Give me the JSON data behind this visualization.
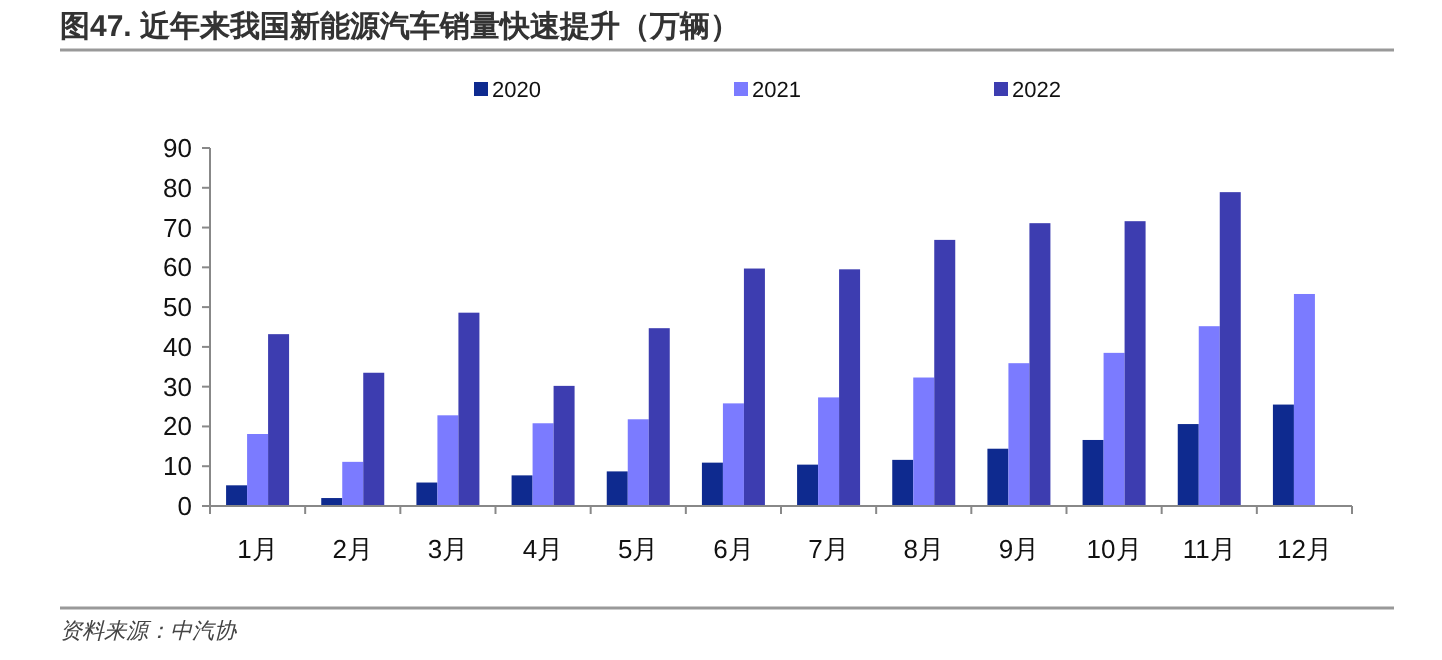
{
  "chart_data": {
    "type": "bar",
    "title": "图47. 近年来我国新能源汽车销量快速提升（万辆）",
    "categories": [
      "1月",
      "2月",
      "3月",
      "4月",
      "5月",
      "6月",
      "7月",
      "8月",
      "9月",
      "10月",
      "11月",
      "12月"
    ],
    "series": [
      {
        "name": "2020",
        "color": "#0e2a8f",
        "values": [
          5.2,
          2.0,
          5.9,
          7.7,
          8.7,
          10.9,
          10.4,
          11.6,
          14.4,
          16.6,
          20.6,
          25.5
        ]
      },
      {
        "name": "2021",
        "color": "#7b7bff",
        "values": [
          18.1,
          11.1,
          22.8,
          20.8,
          21.8,
          25.8,
          27.3,
          32.3,
          35.9,
          38.5,
          45.2,
          53.3
        ]
      },
      {
        "name": "2022",
        "color": "#3d3db0",
        "values": [
          43.2,
          33.5,
          48.6,
          30.2,
          44.7,
          59.7,
          59.5,
          66.9,
          71.1,
          71.6,
          78.9,
          null
        ]
      }
    ],
    "ylim": [
      0,
      90
    ],
    "yticks": [
      0,
      10,
      20,
      30,
      40,
      50,
      60,
      70,
      80,
      90
    ],
    "legend": "top",
    "annotations": [
      "资料来源：中汽协"
    ]
  }
}
